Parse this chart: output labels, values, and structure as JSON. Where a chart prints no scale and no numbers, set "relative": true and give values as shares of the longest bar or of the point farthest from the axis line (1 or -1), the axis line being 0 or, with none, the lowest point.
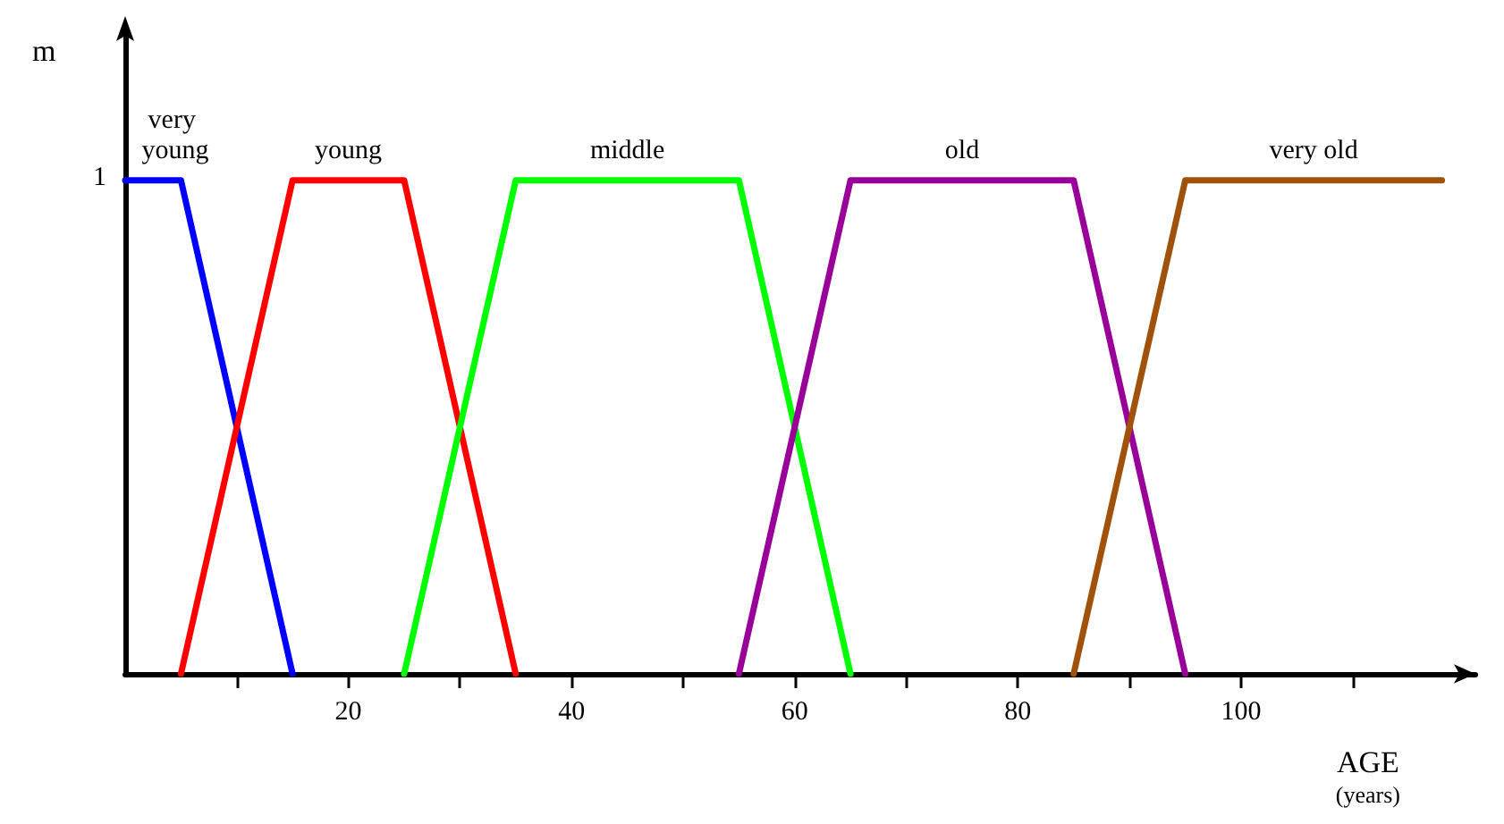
{
  "chart_data": {
    "type": "line",
    "xlabel": "AGE\n(years)",
    "ylabel": "m",
    "relative": true,
    "annotations": [
      "1"
    ],
    "xlim": [
      0,
      121
    ],
    "xticks": [
      {
        "value": 10,
        "label": null
      },
      20,
      {
        "value": 30,
        "label": null
      },
      40,
      {
        "value": 50,
        "label": null
      },
      60,
      {
        "value": 70,
        "label": null
      },
      80,
      {
        "value": 90,
        "label": null
      },
      100,
      {
        "value": 110,
        "label": null
      }
    ],
    "grid": false,
    "legend": false,
    "marker": "none",
    "line_style": "solid",
    "series": [
      {
        "name": "very young",
        "color": "#0000ff",
        "x": [
          0,
          5,
          15
        ],
        "values": [
          1,
          1,
          0
        ]
      },
      {
        "name": "young",
        "color": "#ff0000",
        "x": [
          5,
          15,
          25,
          35
        ],
        "values": [
          0,
          1,
          1,
          0
        ]
      },
      {
        "name": "middle",
        "color": "#00ff00",
        "x": [
          25,
          35,
          55,
          65
        ],
        "values": [
          0,
          1,
          1,
          0
        ]
      },
      {
        "name": "old",
        "color": "#990099",
        "x": [
          55,
          65,
          85,
          95
        ],
        "values": [
          0,
          1,
          1,
          0
        ]
      },
      {
        "name": "very old",
        "color": "#a0520a",
        "x": [
          85,
          95,
          118
        ],
        "values": [
          0,
          1,
          1
        ]
      }
    ]
  }
}
